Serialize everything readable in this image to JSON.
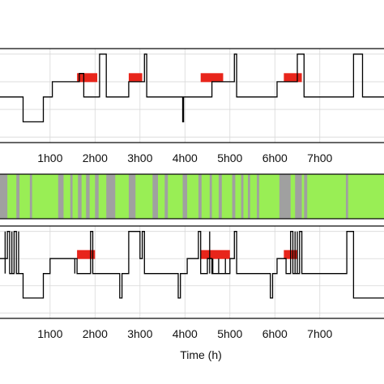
{
  "chart_data": [
    {
      "type": "line",
      "panel": "top-state-trace",
      "x_unit": "h",
      "xlim": [
        -0.15,
        8.5
      ],
      "xticks": [
        1,
        2,
        3,
        4,
        5,
        6,
        7
      ],
      "xtick_labels": [
        "1h00",
        "2h00",
        "3h00",
        "4h00",
        "5h00",
        "6h00",
        "7h00"
      ],
      "levels": [
        0,
        1,
        2,
        3
      ],
      "ylim": [
        -0.2,
        3.2
      ],
      "grid": true,
      "series": [
        {
          "points": [
            [
              -0.15,
              2
            ],
            [
              -0.15,
              1.45
            ],
            [
              0.4,
              1.45
            ],
            [
              0.4,
              0.55
            ],
            [
              0.85,
              0.55
            ],
            [
              0.85,
              1.45
            ],
            [
              1.05,
              1.45
            ],
            [
              1.05,
              2.0
            ],
            [
              1.65,
              2.0
            ],
            [
              1.65,
              2.3
            ],
            [
              1.75,
              2.3
            ],
            [
              1.75,
              1.45
            ],
            [
              2.1,
              1.45
            ],
            [
              2.1,
              3.0
            ],
            [
              2.25,
              3.0
            ],
            [
              2.25,
              1.45
            ],
            [
              2.75,
              1.45
            ],
            [
              2.75,
              2.0
            ],
            [
              3.1,
              2.0
            ],
            [
              3.1,
              3.0
            ],
            [
              3.15,
              3.0
            ],
            [
              3.15,
              1.45
            ],
            [
              3.95,
              1.45
            ],
            [
              3.95,
              0.55
            ],
            [
              3.97,
              0.55
            ],
            [
              3.97,
              1.45
            ],
            [
              4.6,
              1.45
            ],
            [
              4.6,
              2.0
            ],
            [
              5.1,
              2.0
            ],
            [
              5.1,
              3.0
            ],
            [
              5.15,
              3.0
            ],
            [
              5.15,
              1.45
            ],
            [
              6.05,
              1.45
            ],
            [
              6.05,
              2.0
            ],
            [
              6.5,
              2.0
            ],
            [
              6.5,
              3.0
            ],
            [
              6.65,
              3.0
            ],
            [
              6.65,
              1.45
            ],
            [
              7.75,
              1.45
            ],
            [
              7.75,
              3.0
            ],
            [
              7.95,
              3.0
            ],
            [
              7.95,
              1.45
            ],
            [
              8.5,
              1.45
            ]
          ]
        }
      ],
      "highlight_color": "#e8251b",
      "highlight_spans": [
        {
          "x_start": 1.6,
          "x_end": 2.05,
          "level": 2.15
        },
        {
          "x_start": 2.75,
          "x_end": 3.05,
          "level": 2.15
        },
        {
          "x_start": 4.35,
          "x_end": 4.85,
          "level": 2.15
        },
        {
          "x_start": 6.2,
          "x_end": 6.6,
          "level": 2.15
        }
      ]
    },
    {
      "type": "heatmap",
      "panel": "middle-activity-strip",
      "x_unit": "h",
      "xlim": [
        -0.15,
        8.5
      ],
      "colors": {
        "active": "#99ee55",
        "inactive": "#a0a0a0"
      },
      "inactive_spans": [
        [
          -0.15,
          0.05
        ],
        [
          0.25,
          0.32
        ],
        [
          0.55,
          0.6
        ],
        [
          1.18,
          1.3
        ],
        [
          1.45,
          1.5
        ],
        [
          1.62,
          1.7
        ],
        [
          1.8,
          1.88
        ],
        [
          2.0,
          2.08
        ],
        [
          2.25,
          2.45
        ],
        [
          2.75,
          2.9
        ],
        [
          3.28,
          3.4
        ],
        [
          3.55,
          3.62
        ],
        [
          3.95,
          4.05
        ],
        [
          4.3,
          4.37
        ],
        [
          4.55,
          4.6
        ],
        [
          4.75,
          4.82
        ],
        [
          5.05,
          5.12
        ],
        [
          5.25,
          5.3
        ],
        [
          5.4,
          5.45
        ],
        [
          5.6,
          5.65
        ],
        [
          6.1,
          6.35
        ],
        [
          6.45,
          6.6
        ],
        [
          6.65,
          6.72
        ],
        [
          7.58,
          7.63
        ]
      ]
    },
    {
      "type": "line",
      "panel": "bottom-state-trace",
      "x_unit": "h",
      "xlabel": "Time (h)",
      "xlim": [
        -0.15,
        8.5
      ],
      "xticks": [
        1,
        2,
        3,
        4,
        5,
        6,
        7
      ],
      "xtick_labels": [
        "1h00",
        "2h00",
        "3h00",
        "4h00",
        "5h00",
        "6h00",
        "7h00"
      ],
      "levels": [
        0,
        1,
        2,
        3
      ],
      "ylim": [
        -0.2,
        3.2
      ],
      "grid": true,
      "series": [
        {
          "points": [
            [
              -0.15,
              3.0
            ],
            [
              -0.15,
              2.0
            ],
            [
              0.05,
              2.0
            ],
            [
              0.05,
              3.0
            ],
            [
              0.1,
              3.0
            ],
            [
              0.1,
              1.45
            ],
            [
              0.2,
              1.45
            ],
            [
              0.2,
              3.0
            ],
            [
              0.25,
              3.0
            ],
            [
              0.25,
              1.45
            ],
            [
              0.4,
              1.45
            ],
            [
              0.4,
              0.55
            ],
            [
              0.85,
              0.55
            ],
            [
              0.85,
              1.45
            ],
            [
              1.0,
              1.45
            ],
            [
              1.0,
              2.0
            ],
            [
              1.6,
              2.0
            ],
            [
              1.6,
              1.45
            ],
            [
              1.9,
              1.45
            ],
            [
              1.9,
              3.0
            ],
            [
              1.95,
              3.0
            ],
            [
              1.95,
              1.45
            ],
            [
              2.55,
              1.45
            ],
            [
              2.55,
              0.55
            ],
            [
              2.6,
              0.55
            ],
            [
              2.6,
              1.45
            ],
            [
              2.75,
              1.45
            ],
            [
              2.75,
              3.0
            ],
            [
              3.0,
              3.0
            ],
            [
              3.0,
              2.0
            ],
            [
              3.05,
              2.0
            ],
            [
              3.05,
              3.0
            ],
            [
              3.1,
              3.0
            ],
            [
              3.1,
              1.45
            ],
            [
              3.85,
              1.45
            ],
            [
              3.85,
              0.55
            ],
            [
              3.9,
              0.55
            ],
            [
              3.9,
              1.45
            ],
            [
              4.05,
              1.45
            ],
            [
              4.05,
              2.0
            ],
            [
              4.3,
              2.0
            ],
            [
              4.3,
              3.0
            ],
            [
              4.35,
              3.0
            ],
            [
              4.35,
              1.45
            ],
            [
              4.5,
              1.45
            ],
            [
              4.5,
              2.0
            ],
            [
              4.6,
              2.0
            ],
            [
              4.6,
              1.45
            ],
            [
              5.0,
              1.45
            ],
            [
              5.0,
              2.0
            ],
            [
              5.1,
              2.0
            ],
            [
              5.1,
              3.0
            ],
            [
              5.15,
              3.0
            ],
            [
              5.15,
              1.45
            ],
            [
              5.9,
              1.45
            ],
            [
              5.9,
              0.55
            ],
            [
              5.95,
              0.55
            ],
            [
              5.95,
              1.45
            ],
            [
              6.05,
              1.45
            ],
            [
              6.05,
              2.0
            ],
            [
              6.25,
              2.0
            ],
            [
              6.25,
              1.45
            ],
            [
              6.35,
              1.45
            ],
            [
              6.35,
              3.0
            ],
            [
              6.4,
              3.0
            ],
            [
              6.4,
              1.45
            ],
            [
              6.55,
              1.45
            ],
            [
              6.55,
              3.0
            ],
            [
              6.6,
              3.0
            ],
            [
              6.6,
              1.45
            ],
            [
              7.6,
              1.45
            ],
            [
              7.6,
              3.0
            ],
            [
              7.75,
              3.0
            ],
            [
              7.75,
              0.55
            ],
            [
              8.5,
              0.55
            ]
          ]
        }
      ],
      "spikes": [
        {
          "x": 0.0,
          "low": 1.45,
          "high": 3.0
        },
        {
          "x": 0.15,
          "low": 1.45,
          "high": 3.0
        },
        {
          "x": 0.3,
          "low": 1.45,
          "high": 3.0
        },
        {
          "x": 1.55,
          "low": 1.45,
          "high": 2.0
        },
        {
          "x": 4.55,
          "low": 1.45,
          "high": 3.0
        },
        {
          "x": 4.62,
          "low": 1.45,
          "high": 2.0
        },
        {
          "x": 4.75,
          "low": 1.45,
          "high": 2.0
        },
        {
          "x": 4.9,
          "low": 1.45,
          "high": 2.0
        },
        {
          "x": 6.45,
          "low": 1.45,
          "high": 3.0
        },
        {
          "x": 6.5,
          "low": 1.45,
          "high": 3.0
        }
      ],
      "highlight_color": "#e8251b",
      "highlight_spans": [
        {
          "x_start": 1.6,
          "x_end": 2.0,
          "level": 2.15
        },
        {
          "x_start": 4.35,
          "x_end": 5.0,
          "level": 2.15
        },
        {
          "x_start": 6.2,
          "x_end": 6.5,
          "level": 2.15
        }
      ]
    }
  ]
}
